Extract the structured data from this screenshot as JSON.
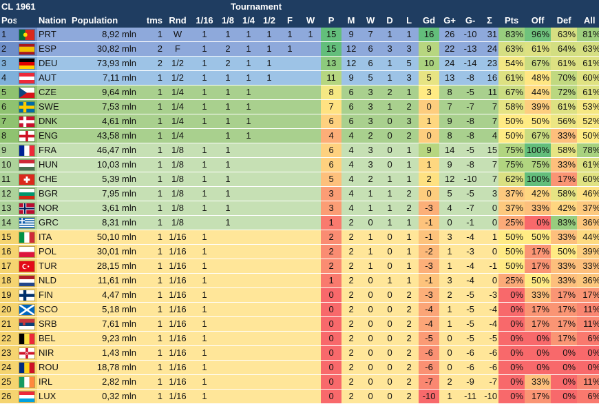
{
  "title": "CL 1961",
  "tournament_label": "Tournament",
  "columns": [
    "Pos",
    "",
    "Nation",
    "Population",
    "tms",
    "Rnd",
    "1/16",
    "1/8",
    "1/4",
    "1/2",
    "F",
    "W",
    "P",
    "M",
    "W",
    "D",
    "L",
    "Gd",
    "G+",
    "G-",
    "Σ",
    "Pts",
    "Off",
    "Def",
    "All"
  ],
  "rows": [
    {
      "pos": "1",
      "flag": "PRT",
      "nation": "PRT",
      "population": "8,92 mln",
      "tms": "1",
      "rnd": "W",
      "r16": "1",
      "r8": "1",
      "r4": "1",
      "r2": "1",
      "f": "1",
      "w": "1",
      "p": "15",
      "m": "9",
      "wins": "7",
      "d": "1",
      "l": "1",
      "gd": "16",
      "gplus": "26",
      "gminus": "-10",
      "sigma": "31",
      "pts": "83%",
      "off": "96%",
      "def": "63%",
      "all": "81%",
      "pts_v": 83,
      "off_v": 96,
      "def_v": 63,
      "all_v": 81
    },
    {
      "pos": "2",
      "flag": "ESP",
      "nation": "ESP",
      "population": "30,82 mln",
      "tms": "2",
      "rnd": "F",
      "r16": "1",
      "r8": "2",
      "r4": "1",
      "r2": "1",
      "f": "1",
      "w": "",
      "p": "15",
      "m": "12",
      "wins": "6",
      "d": "3",
      "l": "3",
      "gd": "9",
      "gplus": "22",
      "gminus": "-13",
      "sigma": "24",
      "pts": "63%",
      "off": "61%",
      "def": "64%",
      "all": "63%",
      "pts_v": 63,
      "off_v": 61,
      "def_v": 64,
      "all_v": 63
    },
    {
      "pos": "3",
      "flag": "DEU",
      "nation": "DEU",
      "population": "73,93 mln",
      "tms": "2",
      "rnd": "1/2",
      "r16": "1",
      "r8": "2",
      "r4": "1",
      "r2": "1",
      "f": "",
      "w": "",
      "p": "13",
      "m": "12",
      "wins": "6",
      "d": "1",
      "l": "5",
      "gd": "10",
      "gplus": "24",
      "gminus": "-14",
      "sigma": "23",
      "pts": "54%",
      "off": "67%",
      "def": "61%",
      "all": "61%",
      "pts_v": 54,
      "off_v": 67,
      "def_v": 61,
      "all_v": 61
    },
    {
      "pos": "4",
      "flag": "AUT",
      "nation": "AUT",
      "population": "7,11 mln",
      "tms": "1",
      "rnd": "1/2",
      "r16": "1",
      "r8": "1",
      "r4": "1",
      "r2": "1",
      "f": "",
      "w": "",
      "p": "11",
      "m": "9",
      "wins": "5",
      "d": "1",
      "l": "3",
      "gd": "5",
      "gplus": "13",
      "gminus": "-8",
      "sigma": "16",
      "pts": "61%",
      "off": "48%",
      "def": "70%",
      "all": "60%",
      "pts_v": 61,
      "off_v": 48,
      "def_v": 70,
      "all_v": 60
    },
    {
      "pos": "5",
      "flag": "CZE",
      "nation": "CZE",
      "population": "9,64 mln",
      "tms": "1",
      "rnd": "1/4",
      "r16": "1",
      "r8": "1",
      "r4": "1",
      "r2": "",
      "f": "",
      "w": "",
      "p": "8",
      "m": "6",
      "wins": "3",
      "d": "2",
      "l": "1",
      "gd": "3",
      "gplus": "8",
      "gminus": "-5",
      "sigma": "11",
      "pts": "67%",
      "off": "44%",
      "def": "72%",
      "all": "61%",
      "pts_v": 67,
      "off_v": 44,
      "def_v": 72,
      "all_v": 61
    },
    {
      "pos": "6",
      "flag": "SWE",
      "nation": "SWE",
      "population": "7,53 mln",
      "tms": "1",
      "rnd": "1/4",
      "r16": "1",
      "r8": "1",
      "r4": "1",
      "r2": "",
      "f": "",
      "w": "",
      "p": "7",
      "m": "6",
      "wins": "3",
      "d": "1",
      "l": "2",
      "gd": "0",
      "gplus": "7",
      "gminus": "-7",
      "sigma": "7",
      "pts": "58%",
      "off": "39%",
      "def": "61%",
      "all": "53%",
      "pts_v": 58,
      "off_v": 39,
      "def_v": 61,
      "all_v": 53
    },
    {
      "pos": "7",
      "flag": "DNK",
      "nation": "DNK",
      "population": "4,61 mln",
      "tms": "1",
      "rnd": "1/4",
      "r16": "1",
      "r8": "1",
      "r4": "1",
      "r2": "",
      "f": "",
      "w": "",
      "p": "6",
      "m": "6",
      "wins": "3",
      "d": "0",
      "l": "3",
      "gd": "1",
      "gplus": "9",
      "gminus": "-8",
      "sigma": "7",
      "pts": "50%",
      "off": "50%",
      "def": "56%",
      "all": "52%",
      "pts_v": 50,
      "off_v": 50,
      "def_v": 56,
      "all_v": 52
    },
    {
      "pos": "8",
      "flag": "ENG",
      "nation": "ENG",
      "population": "43,58 mln",
      "tms": "1",
      "rnd": "1/4",
      "r16": "",
      "r8": "1",
      "r4": "1",
      "r2": "",
      "f": "",
      "w": "",
      "p": "4",
      "m": "4",
      "wins": "2",
      "d": "0",
      "l": "2",
      "gd": "0",
      "gplus": "8",
      "gminus": "-8",
      "sigma": "4",
      "pts": "50%",
      "off": "67%",
      "def": "33%",
      "all": "50%",
      "pts_v": 50,
      "off_v": 67,
      "def_v": 33,
      "all_v": 50
    },
    {
      "pos": "9",
      "flag": "FRA",
      "nation": "FRA",
      "population": "46,47 mln",
      "tms": "1",
      "rnd": "1/8",
      "r16": "1",
      "r8": "1",
      "r4": "",
      "r2": "",
      "f": "",
      "w": "",
      "p": "6",
      "m": "4",
      "wins": "3",
      "d": "0",
      "l": "1",
      "gd": "9",
      "gplus": "14",
      "gminus": "-5",
      "sigma": "15",
      "pts": "75%",
      "off": "100%",
      "def": "58%",
      "all": "78%",
      "pts_v": 75,
      "off_v": 100,
      "def_v": 58,
      "all_v": 78
    },
    {
      "pos": "10",
      "flag": "HUN",
      "nation": "HUN",
      "population": "10,03 mln",
      "tms": "1",
      "rnd": "1/8",
      "r16": "1",
      "r8": "1",
      "r4": "",
      "r2": "",
      "f": "",
      "w": "",
      "p": "6",
      "m": "4",
      "wins": "3",
      "d": "0",
      "l": "1",
      "gd": "1",
      "gplus": "9",
      "gminus": "-8",
      "sigma": "7",
      "pts": "75%",
      "off": "75%",
      "def": "33%",
      "all": "61%",
      "pts_v": 75,
      "off_v": 75,
      "def_v": 33,
      "all_v": 61
    },
    {
      "pos": "11",
      "flag": "CHE",
      "nation": "CHE",
      "population": "5,39 mln",
      "tms": "1",
      "rnd": "1/8",
      "r16": "1",
      "r8": "1",
      "r4": "",
      "r2": "",
      "f": "",
      "w": "",
      "p": "5",
      "m": "4",
      "wins": "2",
      "d": "1",
      "l": "1",
      "gd": "2",
      "gplus": "12",
      "gminus": "-10",
      "sigma": "7",
      "pts": "62%",
      "off": "100%",
      "def": "17%",
      "all": "60%",
      "pts_v": 62,
      "off_v": 100,
      "def_v": 17,
      "all_v": 60
    },
    {
      "pos": "12",
      "flag": "BGR",
      "nation": "BGR",
      "population": "7,95 mln",
      "tms": "1",
      "rnd": "1/8",
      "r16": "1",
      "r8": "1",
      "r4": "",
      "r2": "",
      "f": "",
      "w": "",
      "p": "3",
      "m": "4",
      "wins": "1",
      "d": "1",
      "l": "2",
      "gd": "0",
      "gplus": "5",
      "gminus": "-5",
      "sigma": "3",
      "pts": "37%",
      "off": "42%",
      "def": "58%",
      "all": "46%",
      "pts_v": 37,
      "off_v": 42,
      "def_v": 58,
      "all_v": 46
    },
    {
      "pos": "13",
      "flag": "NOR",
      "nation": "NOR",
      "population": "3,61 mln",
      "tms": "1",
      "rnd": "1/8",
      "r16": "1",
      "r8": "1",
      "r4": "",
      "r2": "",
      "f": "",
      "w": "",
      "p": "3",
      "m": "4",
      "wins": "1",
      "d": "1",
      "l": "2",
      "gd": "-3",
      "gplus": "4",
      "gminus": "-7",
      "sigma": "0",
      "pts": "37%",
      "off": "33%",
      "def": "42%",
      "all": "37%",
      "pts_v": 37,
      "off_v": 33,
      "def_v": 42,
      "all_v": 37
    },
    {
      "pos": "14",
      "flag": "GRC",
      "nation": "GRC",
      "population": "8,31 mln",
      "tms": "1",
      "rnd": "1/8",
      "r16": "",
      "r8": "1",
      "r4": "",
      "r2": "",
      "f": "",
      "w": "",
      "p": "1",
      "m": "2",
      "wins": "0",
      "d": "1",
      "l": "1",
      "gd": "-1",
      "gplus": "0",
      "gminus": "-1",
      "sigma": "0",
      "pts": "25%",
      "off": "0%",
      "def": "83%",
      "all": "36%",
      "pts_v": 25,
      "off_v": 0,
      "def_v": 83,
      "all_v": 36
    },
    {
      "pos": "15",
      "flag": "ITA",
      "nation": "ITA",
      "population": "50,10 mln",
      "tms": "1",
      "rnd": "1/16",
      "r16": "1",
      "r8": "",
      "r4": "",
      "r2": "",
      "f": "",
      "w": "",
      "p": "2",
      "m": "2",
      "wins": "1",
      "d": "0",
      "l": "1",
      "gd": "-1",
      "gplus": "3",
      "gminus": "-4",
      "sigma": "1",
      "pts": "50%",
      "off": "50%",
      "def": "33%",
      "all": "44%",
      "pts_v": 50,
      "off_v": 50,
      "def_v": 33,
      "all_v": 44
    },
    {
      "pos": "16",
      "flag": "POL",
      "nation": "POL",
      "population": "30,01 mln",
      "tms": "1",
      "rnd": "1/16",
      "r16": "1",
      "r8": "",
      "r4": "",
      "r2": "",
      "f": "",
      "w": "",
      "p": "2",
      "m": "2",
      "wins": "1",
      "d": "0",
      "l": "1",
      "gd": "-2",
      "gplus": "1",
      "gminus": "-3",
      "sigma": "0",
      "pts": "50%",
      "off": "17%",
      "def": "50%",
      "all": "39%",
      "pts_v": 50,
      "off_v": 17,
      "def_v": 50,
      "all_v": 39
    },
    {
      "pos": "17",
      "flag": "TUR",
      "nation": "TUR",
      "population": "28,15 mln",
      "tms": "1",
      "rnd": "1/16",
      "r16": "1",
      "r8": "",
      "r4": "",
      "r2": "",
      "f": "",
      "w": "",
      "p": "2",
      "m": "2",
      "wins": "1",
      "d": "0",
      "l": "1",
      "gd": "-3",
      "gplus": "1",
      "gminus": "-4",
      "sigma": "-1",
      "pts": "50%",
      "off": "17%",
      "def": "33%",
      "all": "33%",
      "pts_v": 50,
      "off_v": 17,
      "def_v": 33,
      "all_v": 33
    },
    {
      "pos": "18",
      "flag": "NLD",
      "nation": "NLD",
      "population": "11,61 mln",
      "tms": "1",
      "rnd": "1/16",
      "r16": "1",
      "r8": "",
      "r4": "",
      "r2": "",
      "f": "",
      "w": "",
      "p": "1",
      "m": "2",
      "wins": "0",
      "d": "1",
      "l": "1",
      "gd": "-1",
      "gplus": "3",
      "gminus": "-4",
      "sigma": "0",
      "pts": "25%",
      "off": "50%",
      "def": "33%",
      "all": "36%",
      "pts_v": 25,
      "off_v": 50,
      "def_v": 33,
      "all_v": 36
    },
    {
      "pos": "19",
      "flag": "FIN",
      "nation": "FIN",
      "population": "4,47 mln",
      "tms": "1",
      "rnd": "1/16",
      "r16": "1",
      "r8": "",
      "r4": "",
      "r2": "",
      "f": "",
      "w": "",
      "p": "0",
      "m": "2",
      "wins": "0",
      "d": "0",
      "l": "2",
      "gd": "-3",
      "gplus": "2",
      "gminus": "-5",
      "sigma": "-3",
      "pts": "0%",
      "off": "33%",
      "def": "17%",
      "all": "17%",
      "pts_v": 0,
      "off_v": 33,
      "def_v": 17,
      "all_v": 17
    },
    {
      "pos": "20",
      "flag": "SCO",
      "nation": "SCO",
      "population": "5,18 mln",
      "tms": "1",
      "rnd": "1/16",
      "r16": "1",
      "r8": "",
      "r4": "",
      "r2": "",
      "f": "",
      "w": "",
      "p": "0",
      "m": "2",
      "wins": "0",
      "d": "0",
      "l": "2",
      "gd": "-4",
      "gplus": "1",
      "gminus": "-5",
      "sigma": "-4",
      "pts": "0%",
      "off": "17%",
      "def": "17%",
      "all": "11%",
      "pts_v": 0,
      "off_v": 17,
      "def_v": 17,
      "all_v": 11
    },
    {
      "pos": "21",
      "flag": "SRB",
      "nation": "SRB",
      "population": "7,61 mln",
      "tms": "1",
      "rnd": "1/16",
      "r16": "1",
      "r8": "",
      "r4": "",
      "r2": "",
      "f": "",
      "w": "",
      "p": "0",
      "m": "2",
      "wins": "0",
      "d": "0",
      "l": "2",
      "gd": "-4",
      "gplus": "1",
      "gminus": "-5",
      "sigma": "-4",
      "pts": "0%",
      "off": "17%",
      "def": "17%",
      "all": "11%",
      "pts_v": 0,
      "off_v": 17,
      "def_v": 17,
      "all_v": 11
    },
    {
      "pos": "22",
      "flag": "BEL",
      "nation": "BEL",
      "population": "9,23 mln",
      "tms": "1",
      "rnd": "1/16",
      "r16": "1",
      "r8": "",
      "r4": "",
      "r2": "",
      "f": "",
      "w": "",
      "p": "0",
      "m": "2",
      "wins": "0",
      "d": "0",
      "l": "2",
      "gd": "-5",
      "gplus": "0",
      "gminus": "-5",
      "sigma": "-5",
      "pts": "0%",
      "off": "0%",
      "def": "17%",
      "all": "6%",
      "pts_v": 0,
      "off_v": 0,
      "def_v": 17,
      "all_v": 6
    },
    {
      "pos": "23",
      "flag": "NIR",
      "nation": "NIR",
      "population": "1,43 mln",
      "tms": "1",
      "rnd": "1/16",
      "r16": "1",
      "r8": "",
      "r4": "",
      "r2": "",
      "f": "",
      "w": "",
      "p": "0",
      "m": "2",
      "wins": "0",
      "d": "0",
      "l": "2",
      "gd": "-6",
      "gplus": "0",
      "gminus": "-6",
      "sigma": "-6",
      "pts": "0%",
      "off": "0%",
      "def": "0%",
      "all": "0%",
      "pts_v": 0,
      "off_v": 0,
      "def_v": 0,
      "all_v": 0
    },
    {
      "pos": "24",
      "flag": "ROU",
      "nation": "ROU",
      "population": "18,78 mln",
      "tms": "1",
      "rnd": "1/16",
      "r16": "1",
      "r8": "",
      "r4": "",
      "r2": "",
      "f": "",
      "w": "",
      "p": "0",
      "m": "2",
      "wins": "0",
      "d": "0",
      "l": "2",
      "gd": "-6",
      "gplus": "0",
      "gminus": "-6",
      "sigma": "-6",
      "pts": "0%",
      "off": "0%",
      "def": "0%",
      "all": "0%",
      "pts_v": 0,
      "off_v": 0,
      "def_v": 0,
      "all_v": 0
    },
    {
      "pos": "25",
      "flag": "IRL",
      "nation": "IRL",
      "population": "2,82 mln",
      "tms": "1",
      "rnd": "1/16",
      "r16": "1",
      "r8": "",
      "r4": "",
      "r2": "",
      "f": "",
      "w": "",
      "p": "0",
      "m": "2",
      "wins": "0",
      "d": "0",
      "l": "2",
      "gd": "-7",
      "gplus": "2",
      "gminus": "-9",
      "sigma": "-7",
      "pts": "0%",
      "off": "33%",
      "def": "0%",
      "all": "11%",
      "pts_v": 0,
      "off_v": 33,
      "def_v": 0,
      "all_v": 11
    },
    {
      "pos": "26",
      "flag": "LUX",
      "nation": "LUX",
      "population": "0,32 mln",
      "tms": "1",
      "rnd": "1/16",
      "r16": "1",
      "r8": "",
      "r4": "",
      "r2": "",
      "f": "",
      "w": "",
      "p": "0",
      "m": "2",
      "wins": "0",
      "d": "0",
      "l": "2",
      "gd": "-10",
      "gplus": "1",
      "gminus": "-11",
      "sigma": "-10",
      "pts": "0%",
      "off": "17%",
      "def": "0%",
      "all": "6%",
      "pts_v": 0,
      "off_v": 17,
      "def_v": 0,
      "all_v": 6
    }
  ],
  "colors": {
    "header": "#1f3d61",
    "band_winner": "#8ea9db",
    "band_semis": "#9dc3e6",
    "band_quarters": "#a9d08e",
    "band_eighths": "#c6e0b4",
    "band_sixteenths": "#ffe699",
    "band_winner_rows": [
      "1",
      "2",
      "3",
      "4"
    ]
  }
}
